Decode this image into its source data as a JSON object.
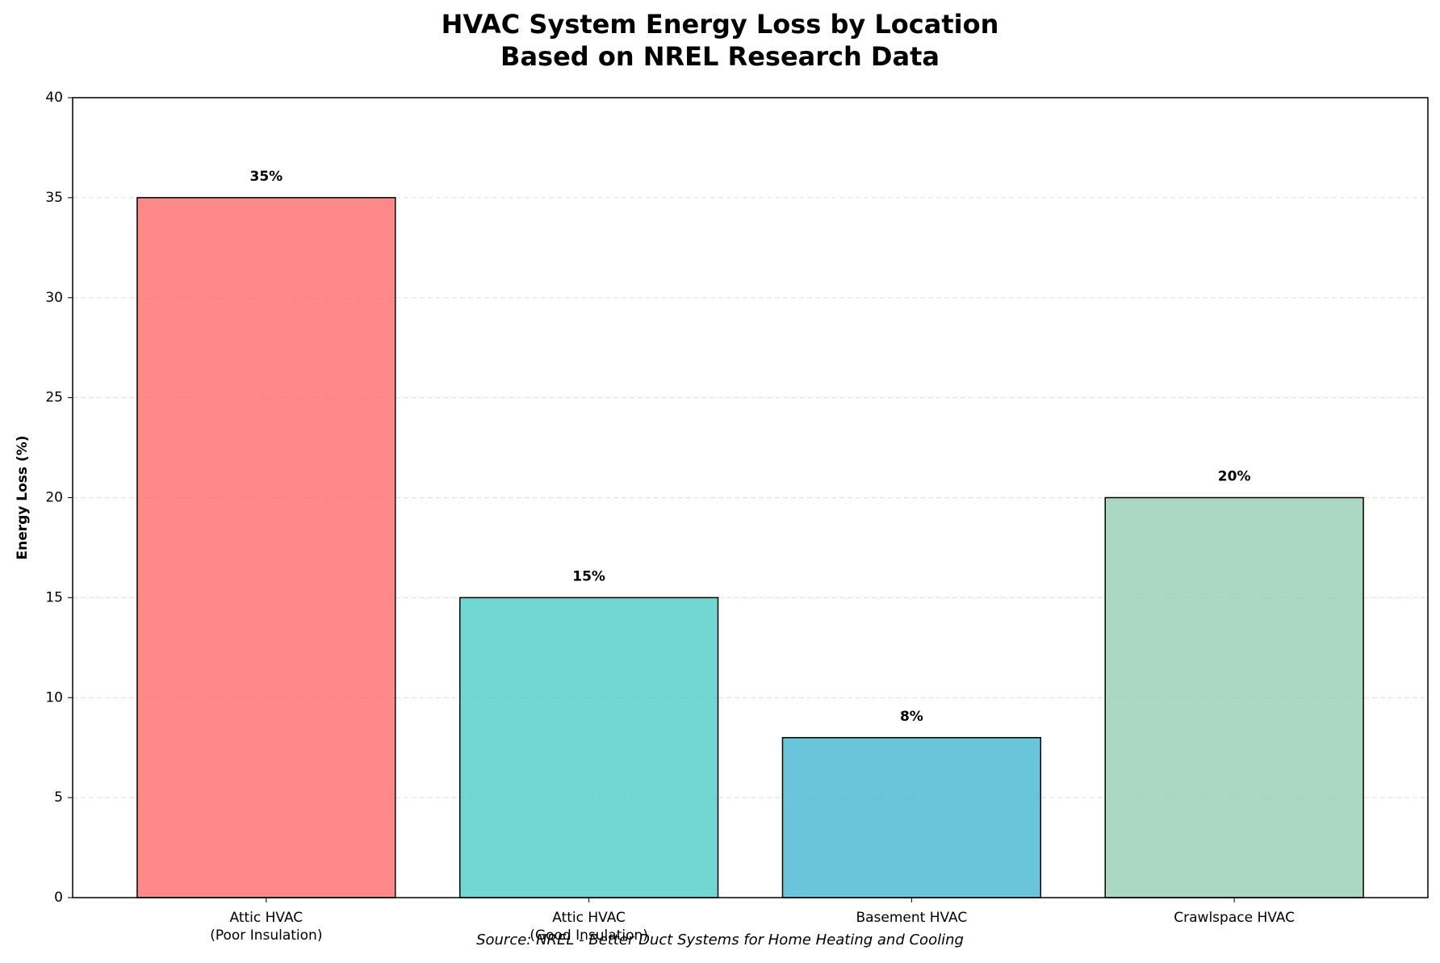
{
  "chart_data": {
    "type": "bar",
    "title": "HVAC System Energy Loss by Location\nBased on NREL Research Data",
    "ylabel": "Energy Loss (%)",
    "categories": [
      "Attic HVAC\n(Poor Insulation)",
      "Attic HVAC\n(Good Insulation)",
      "Basement HVAC",
      "Crawlspace HVAC"
    ],
    "values": [
      35,
      15,
      8,
      20
    ],
    "value_labels": [
      "35%",
      "15%",
      "8%",
      "20%"
    ],
    "colors": [
      "#FF6B6B",
      "#4ECDC4",
      "#45B7D1",
      "#96CEB4"
    ],
    "ylim": [
      0,
      40
    ],
    "yticks": [
      0,
      5,
      10,
      15,
      20,
      25,
      30,
      35,
      40
    ],
    "grid": true,
    "source": "Source: NREL - Better Duct Systems for Home Heating and Cooling"
  }
}
